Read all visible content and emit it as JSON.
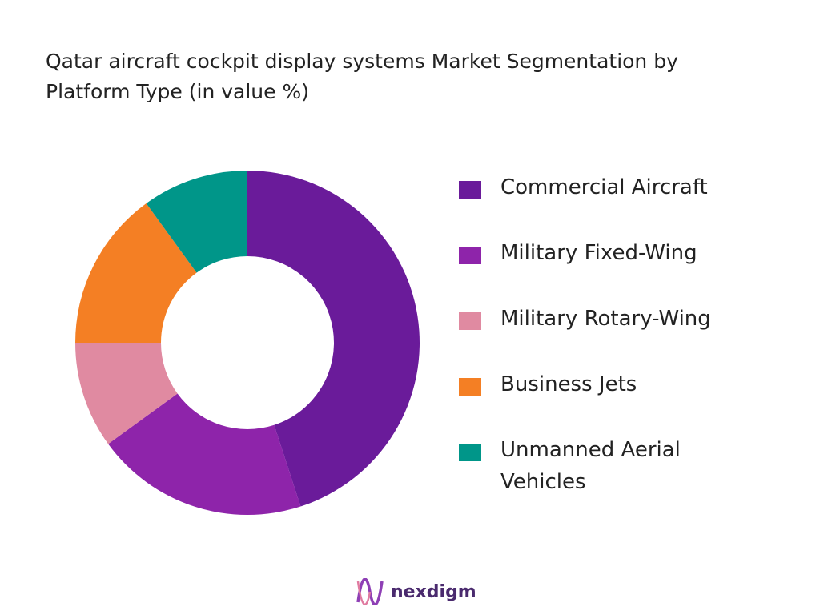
{
  "chart_data": {
    "type": "donut",
    "title": "Qatar aircraft cockpit display systems Market Segmentation by Platform Type (in value %)",
    "categories": [
      "Commercial Aircraft",
      "Military Fixed-Wing",
      "Military Rotary-Wing",
      "Business Jets",
      "Unmanned Aerial Vehicles"
    ],
    "values": [
      45,
      20,
      10,
      15,
      10
    ],
    "colors": [
      "#6a1b9a",
      "#8e24aa",
      "#e08aa1",
      "#f47f24",
      "#009689"
    ],
    "legend": "right"
  },
  "brand": "nexdigm"
}
